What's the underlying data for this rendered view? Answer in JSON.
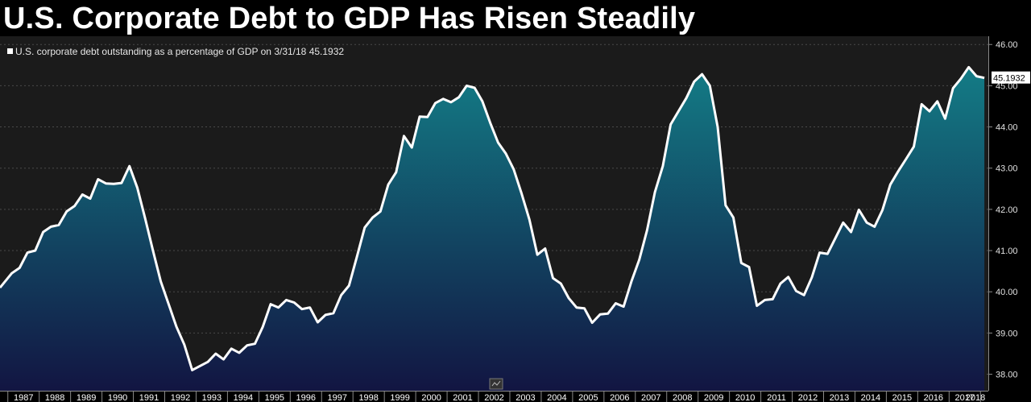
{
  "title": "U.S. Corporate Debt to GDP Has Risen Steadily",
  "colors": {
    "background": "#1b1b1b",
    "line": "#ffffff",
    "fill_top": "#137c86",
    "fill_bottom": "#121542",
    "last_value_box": "#ffffff"
  },
  "chart_data": {
    "type": "area",
    "legend": {
      "text": "U.S. corporate debt outstanding as a percentage of GDP on 3/31/18 45.1932",
      "placement": "top-left"
    },
    "last_value_label": "45.1932",
    "ylim": [
      37.6,
      46.2
    ],
    "yticks": [
      "38.00",
      "39.00",
      "40.00",
      "41.00",
      "42.00",
      "43.00",
      "44.00",
      "45.00",
      "46.00"
    ],
    "xticks": [
      "1987",
      "1988",
      "1989",
      "1990",
      "1991",
      "1992",
      "1993",
      "1994",
      "1995",
      "1996",
      "1997",
      "1998",
      "1999",
      "2000",
      "2001",
      "2002",
      "2003",
      "2004",
      "2005",
      "2006",
      "2007",
      "2008",
      "2009",
      "2010",
      "2011",
      "2012",
      "2013",
      "2014",
      "2015",
      "2016",
      "2017",
      "2018"
    ],
    "x_start": "1986-10",
    "x_end": "2018-04",
    "series": [
      {
        "frequency": "quarterly",
        "start": "1986Q4",
        "values": [
          40.1,
          40.45,
          40.58,
          40.95,
          41.0,
          41.45,
          41.58,
          41.62,
          41.95,
          42.08,
          42.36,
          42.26,
          42.73,
          42.63,
          42.62,
          42.64,
          43.05,
          42.53,
          41.78,
          41.0,
          40.25,
          39.7,
          39.15,
          38.72,
          38.1,
          38.2,
          38.3,
          38.5,
          38.36,
          38.62,
          38.52,
          38.7,
          38.74,
          39.15,
          39.7,
          39.62,
          39.8,
          39.74,
          39.58,
          39.62,
          39.26,
          39.44,
          39.48,
          39.92,
          40.15,
          40.85,
          41.56,
          41.8,
          41.95,
          42.6,
          42.9,
          43.78,
          43.5,
          44.25,
          44.24,
          44.58,
          44.68,
          44.6,
          44.72,
          45.0,
          44.95,
          44.62,
          44.1,
          43.62,
          43.35,
          42.97,
          42.38,
          41.75,
          40.9,
          41.05,
          40.33,
          40.2,
          39.85,
          39.62,
          39.6,
          39.25,
          39.45,
          39.47,
          39.72,
          39.64,
          40.25,
          40.78,
          41.5,
          42.42,
          43.05,
          44.06,
          44.38,
          44.7,
          45.1,
          45.28,
          45.0,
          44.0,
          42.1,
          41.8,
          40.7,
          40.6,
          39.66,
          39.8,
          39.82,
          40.2,
          40.36,
          40.02,
          39.92,
          40.35,
          40.95,
          40.92,
          41.3,
          41.68,
          41.45,
          41.99,
          41.68,
          41.58,
          41.98,
          42.6,
          42.92,
          43.22,
          43.52,
          44.55,
          44.38,
          44.62,
          44.2,
          44.94,
          45.17,
          45.45,
          45.23,
          45.19
        ]
      }
    ]
  }
}
